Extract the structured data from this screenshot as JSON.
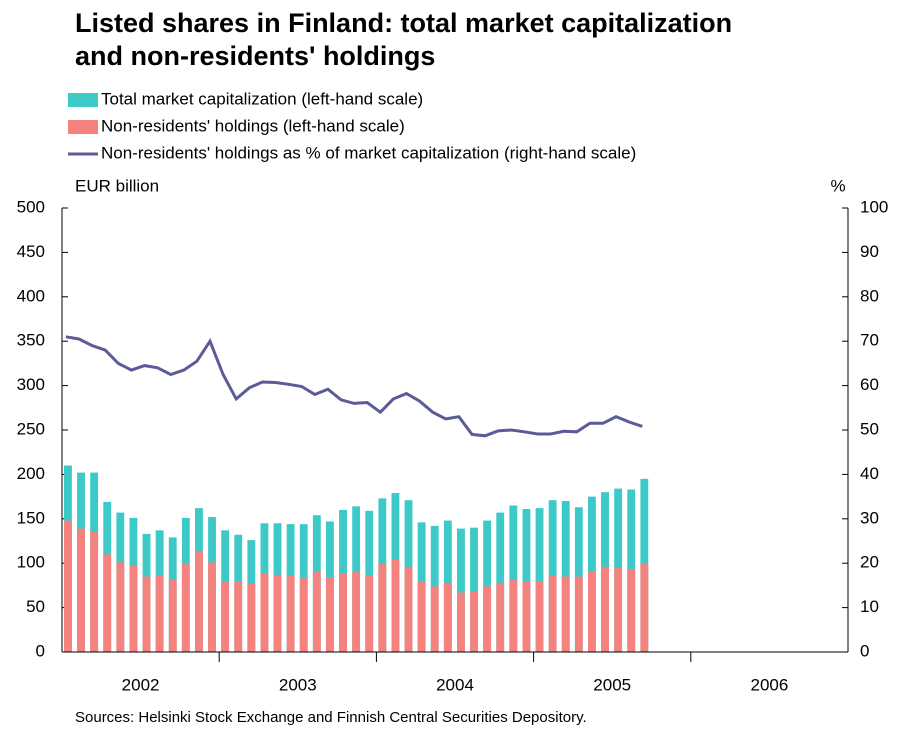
{
  "chart_data": {
    "type": "bar",
    "title": [
      "Listed shares in Finland: total market capitalization",
      "and non-residents' holdings"
    ],
    "y_label": "EUR billion",
    "y2_label": "%",
    "source": "Sources: Helsinki Stock Exchange and Finnish Central Securities Depository.",
    "year_labels": [
      "2002",
      "2003",
      "2004",
      "2005",
      "2006"
    ],
    "categories": [
      null,
      null,
      null,
      null,
      null,
      null,
      null,
      null,
      null,
      null,
      null,
      null,
      null,
      null,
      null,
      null,
      null,
      null,
      null,
      null,
      null,
      null,
      null,
      null,
      null,
      null,
      null,
      null,
      null,
      null,
      null,
      null,
      null,
      null,
      null,
      null,
      null,
      null,
      null,
      null,
      null,
      null,
      null,
      null,
      null
    ],
    "series": [
      {
        "name": "Total market capitalization (left-hand scale)",
        "color": "#3ec9c9",
        "mark": "bar",
        "values": [
          210,
          202,
          202,
          169,
          157,
          151,
          133,
          137,
          129,
          151,
          162,
          152,
          137,
          132,
          126,
          145,
          145,
          144,
          144,
          154,
          147,
          160,
          164,
          159,
          173,
          179,
          171,
          146,
          142,
          148,
          139,
          140,
          148,
          157,
          165,
          161,
          162,
          171,
          170,
          163,
          175,
          180,
          184,
          183,
          195
        ]
      },
      {
        "name": "Non-residents' holdings (left-hand scale)",
        "color": "#f4827e",
        "mark": "bar",
        "values": [
          148,
          139,
          136,
          110,
          101,
          97,
          85,
          86,
          82,
          100,
          114,
          101,
          79,
          80,
          77,
          88,
          87,
          86,
          83,
          91,
          84,
          89,
          90,
          86,
          99,
          104,
          96,
          79,
          74,
          78,
          67,
          68,
          74,
          78,
          81,
          79,
          80,
          86,
          85,
          85,
          91,
          96,
          95,
          93,
          100
        ]
      },
      {
        "name": "Non-residents' holdings as % of market capitalization (right-hand scale)",
        "color": "#5b5b98",
        "mark": "line",
        "axis": "y2",
        "values": [
          71,
          70.5,
          69,
          68,
          65,
          63.5,
          64.5,
          64,
          62.5,
          63.5,
          65.5,
          70,
          62.5,
          57,
          59.5,
          60.8,
          60.7,
          60.3,
          59.8,
          58,
          59.2,
          56.8,
          56,
          56.2,
          54,
          57,
          58.2,
          56.5,
          54,
          52.5,
          53,
          49,
          48.7,
          49.8,
          50,
          49.6,
          49.1,
          49.1,
          49.7,
          49.6,
          51.5,
          51.5,
          53,
          51.8,
          50.8
        ]
      }
    ],
    "ylim": [
      0,
      500
    ],
    "yticks": [
      0,
      50,
      100,
      150,
      200,
      250,
      300,
      350,
      400,
      450,
      500
    ],
    "y2lim": [
      0,
      100
    ],
    "y2ticks": [
      0,
      10,
      20,
      30,
      40,
      50,
      60,
      70,
      80,
      90,
      100
    ]
  }
}
